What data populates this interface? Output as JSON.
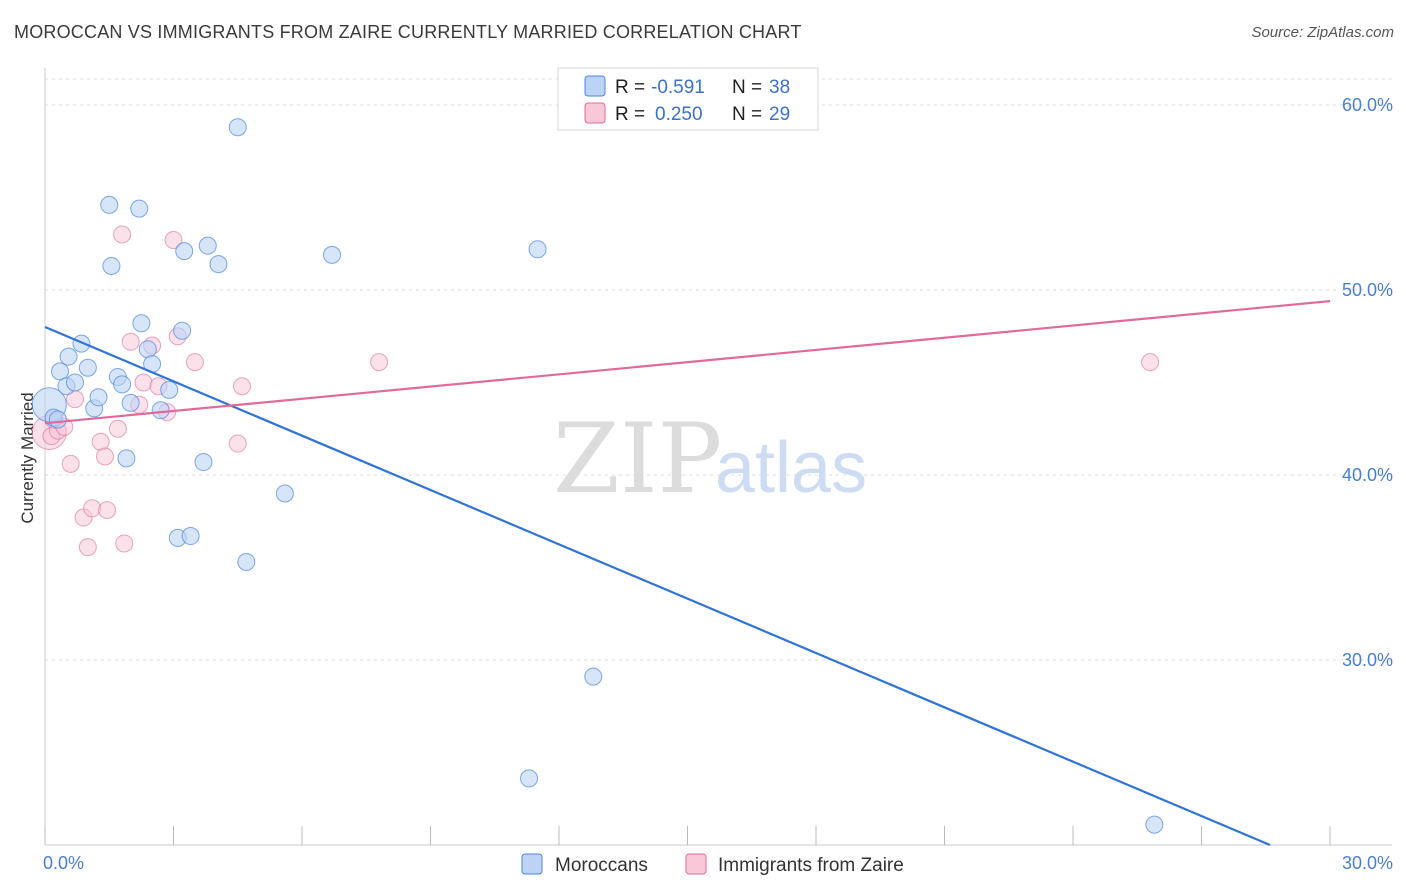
{
  "title": "MOROCCAN VS IMMIGRANTS FROM ZAIRE CURRENTLY MARRIED CORRELATION CHART",
  "source": "Source: ZipAtlas.com",
  "watermark": {
    "zip": "ZIP",
    "atlas": "atlas"
  },
  "colors": {
    "blue": "#4a86e0",
    "blue_fill": "#bcd3f5",
    "pink": "#e06a9a",
    "pink_fill": "#f8c8d9",
    "grid": "#dddddd"
  },
  "legend": {
    "rows": [
      {
        "r_label": "R =",
        "r_value": "-0.591",
        "n_label": "N =",
        "n_value": "38"
      },
      {
        "r_label": "R =",
        "r_value": "0.250",
        "n_label": "N =",
        "n_value": "29"
      }
    ]
  },
  "bottom_legend": [
    "Moroccans",
    "Immigrants from Zaire"
  ],
  "chart_data": {
    "type": "scatter",
    "xlabel": "",
    "ylabel": "Currently Married",
    "xlim": [
      0,
      30
    ],
    "ylim": [
      20,
      62
    ],
    "x_tick_labels": [
      "0.0%",
      "30.0%"
    ],
    "y_ticks": [
      30,
      40,
      50,
      60
    ],
    "y_tick_labels": [
      "30.0%",
      "40.0%",
      "50.0%",
      "60.0%"
    ],
    "grid": true,
    "series": [
      {
        "name": "Moroccans",
        "points": [
          [
            0.1,
            43.8
          ],
          [
            0.2,
            43.1
          ],
          [
            0.3,
            43.0
          ],
          [
            0.35,
            45.6
          ],
          [
            0.5,
            44.8
          ],
          [
            0.55,
            46.4
          ],
          [
            0.7,
            45.0
          ],
          [
            0.85,
            47.1
          ],
          [
            1.0,
            45.8
          ],
          [
            1.15,
            43.6
          ],
          [
            1.25,
            44.2
          ],
          [
            1.5,
            54.6
          ],
          [
            1.55,
            51.3
          ],
          [
            1.7,
            45.3
          ],
          [
            1.8,
            44.9
          ],
          [
            1.9,
            40.9
          ],
          [
            2.0,
            43.9
          ],
          [
            2.2,
            54.4
          ],
          [
            2.25,
            48.2
          ],
          [
            2.4,
            46.8
          ],
          [
            2.5,
            46.0
          ],
          [
            2.7,
            43.5
          ],
          [
            2.9,
            44.6
          ],
          [
            3.1,
            36.6
          ],
          [
            3.2,
            47.8
          ],
          [
            3.25,
            52.1
          ],
          [
            3.4,
            36.7
          ],
          [
            3.7,
            40.7
          ],
          [
            3.8,
            52.4
          ],
          [
            4.05,
            51.4
          ],
          [
            4.5,
            58.8
          ],
          [
            4.7,
            35.3
          ],
          [
            5.6,
            39.0
          ],
          [
            6.7,
            51.9
          ],
          [
            11.3,
            23.6
          ],
          [
            11.5,
            52.2
          ],
          [
            12.8,
            29.1
          ],
          [
            25.9,
            21.1
          ]
        ]
      },
      {
        "name": "Immigrants from Zaire",
        "points": [
          [
            0.1,
            42.3
          ],
          [
            0.15,
            42.1
          ],
          [
            0.3,
            42.4
          ],
          [
            0.45,
            42.6
          ],
          [
            0.6,
            40.6
          ],
          [
            0.7,
            44.1
          ],
          [
            0.9,
            37.7
          ],
          [
            1.0,
            36.1
          ],
          [
            1.1,
            38.2
          ],
          [
            1.3,
            41.8
          ],
          [
            1.4,
            41.0
          ],
          [
            1.45,
            38.1
          ],
          [
            1.7,
            42.5
          ],
          [
            1.8,
            53.0
          ],
          [
            1.85,
            36.3
          ],
          [
            2.0,
            47.2
          ],
          [
            2.2,
            43.8
          ],
          [
            2.3,
            45.0
          ],
          [
            2.5,
            47.0
          ],
          [
            2.65,
            44.8
          ],
          [
            2.85,
            43.4
          ],
          [
            3.0,
            52.7
          ],
          [
            3.1,
            47.5
          ],
          [
            3.5,
            46.1
          ],
          [
            4.5,
            41.7
          ],
          [
            4.6,
            44.8
          ],
          [
            7.8,
            46.1
          ],
          [
            25.8,
            46.1
          ],
          [
            0.2,
            43.0
          ]
        ]
      }
    ],
    "trend_lines": [
      {
        "name": "Moroccans",
        "x": [
          0,
          28.6
        ],
        "y": [
          48.0,
          20.0
        ]
      },
      {
        "name": "Immigrants from Zaire",
        "x": [
          0,
          30
        ],
        "y": [
          42.8,
          49.4
        ]
      }
    ]
  }
}
